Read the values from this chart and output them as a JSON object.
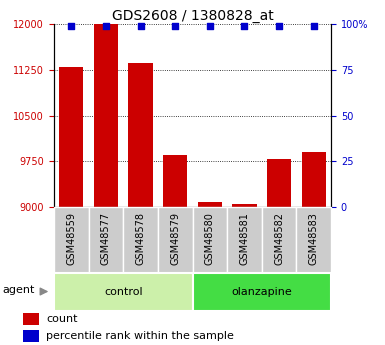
{
  "title": "GDS2608 / 1380828_at",
  "samples": [
    "GSM48559",
    "GSM48577",
    "GSM48578",
    "GSM48579",
    "GSM48580",
    "GSM48581",
    "GSM48582",
    "GSM48583"
  ],
  "counts": [
    11300,
    12000,
    11360,
    9855,
    9075,
    9055,
    9785,
    9905
  ],
  "bar_color": "#cc0000",
  "marker_color": "#0000cc",
  "ylim_left": [
    9000,
    12000
  ],
  "ylim_right": [
    0,
    100
  ],
  "yticks_left": [
    9000,
    9750,
    10500,
    11250,
    12000
  ],
  "yticks_right": [
    0,
    25,
    50,
    75,
    100
  ],
  "groups": [
    {
      "label": "control",
      "start": 0,
      "end": 4,
      "color": "#ccf0aa"
    },
    {
      "label": "olanzapine",
      "start": 4,
      "end": 8,
      "color": "#44dd44"
    }
  ],
  "agent_label": "agent",
  "legend_count_label": "count",
  "legend_pct_label": "percentile rank within the sample",
  "title_fontsize": 10,
  "tick_fontsize": 7,
  "label_fontsize": 8,
  "group_fontsize": 8
}
